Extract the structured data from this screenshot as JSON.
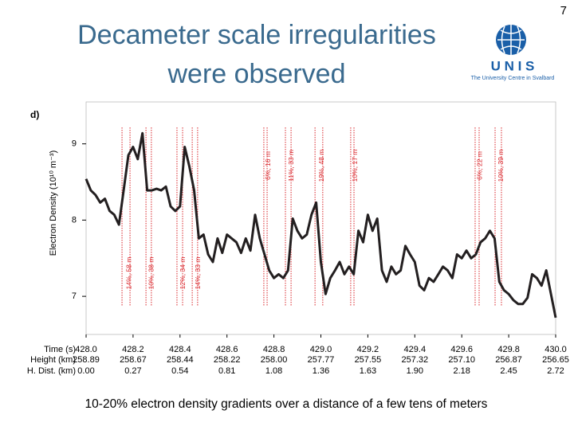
{
  "page_number": "7",
  "title_lines": [
    "Decameter scale irregularities",
    "were observed"
  ],
  "logo": {
    "name": "U N I S",
    "subtitle": "The University Centre in Svalbard"
  },
  "caption": "10-20% electron density gradients over a distance of a few tens of meters",
  "chart_data": {
    "type": "line",
    "panel_label": "d)",
    "ylabel": "Electron Density (10¹⁰ m⁻³)",
    "row_labels": [
      "Time (s)",
      "Height (km)",
      "H. Dist. (km)"
    ],
    "xlim": [
      428,
      430
    ],
    "xticks": [
      {
        "value": 428,
        "label": "428.0"
      },
      428.2,
      428.4,
      428.6,
      428.8,
      {
        "value": 429,
        "label": "429.0"
      },
      429.2,
      429.4,
      429.6,
      429.8,
      {
        "value": 430,
        "label": "430.0"
      }
    ],
    "height_labels": [
      "258.89",
      "258.67",
      "258.44",
      "258.22",
      "258.00",
      "257.77",
      "257.55",
      "257.32",
      "257.10",
      "256.87",
      "256.65"
    ],
    "hdist_labels": [
      "0.00",
      "0.27",
      "0.54",
      "0.81",
      "1.08",
      "1.36",
      "1.63",
      "1.90",
      "2.18",
      "2.45",
      "2.72"
    ],
    "ylim": [
      6.5,
      9.55
    ],
    "yticks": [
      7,
      8,
      9
    ],
    "color": "#231f20",
    "annotation_color": "#d9262b",
    "x": [
      428.0,
      428.02,
      428.04,
      428.06,
      428.08,
      428.1,
      428.12,
      428.14,
      428.16,
      428.18,
      428.2,
      428.22,
      428.24,
      428.26,
      428.28,
      428.3,
      428.32,
      428.34,
      428.36,
      428.38,
      428.4,
      428.42,
      428.44,
      428.46,
      428.48,
      428.5,
      428.52,
      428.54,
      428.56,
      428.58,
      428.6,
      428.62,
      428.64,
      428.66,
      428.68,
      428.7,
      428.72,
      428.74,
      428.76,
      428.78,
      428.8,
      428.82,
      428.84,
      428.86,
      428.88,
      428.9,
      428.92,
      428.94,
      428.96,
      428.98,
      429.0,
      429.02,
      429.04,
      429.06,
      429.08,
      429.1,
      429.12,
      429.14,
      429.16,
      429.18,
      429.2,
      429.22,
      429.24,
      429.26,
      429.28,
      429.3,
      429.32,
      429.34,
      429.36,
      429.38,
      429.4,
      429.42,
      429.44,
      429.46,
      429.48,
      429.5,
      429.52,
      429.54,
      429.56,
      429.58,
      429.6,
      429.62,
      429.64,
      429.66,
      429.68,
      429.7,
      429.72,
      429.74,
      429.76,
      429.78,
      429.8,
      429.82,
      429.84,
      429.86,
      429.88,
      429.9,
      429.92,
      429.94,
      429.96,
      429.98,
      430.0
    ],
    "values": [
      8.54,
      8.39,
      8.33,
      8.23,
      8.28,
      8.12,
      8.07,
      7.94,
      8.39,
      8.85,
      8.96,
      8.8,
      9.14,
      8.39,
      8.39,
      8.41,
      8.39,
      8.44,
      8.18,
      8.12,
      8.18,
      8.96,
      8.7,
      8.39,
      7.76,
      7.81,
      7.55,
      7.45,
      7.76,
      7.57,
      7.81,
      7.76,
      7.71,
      7.57,
      7.76,
      7.6,
      8.07,
      7.76,
      7.55,
      7.34,
      7.24,
      7.29,
      7.24,
      7.34,
      8.02,
      7.86,
      7.76,
      7.81,
      8.07,
      8.23,
      7.45,
      7.03,
      7.24,
      7.34,
      7.45,
      7.29,
      7.39,
      7.29,
      7.86,
      7.71,
      8.07,
      7.86,
      8.02,
      7.34,
      7.19,
      7.39,
      7.29,
      7.34,
      7.66,
      7.55,
      7.45,
      7.14,
      7.08,
      7.24,
      7.19,
      7.29,
      7.39,
      7.34,
      7.24,
      7.55,
      7.5,
      7.6,
      7.5,
      7.55,
      7.71,
      7.76,
      7.86,
      7.76,
      7.19,
      7.08,
      7.03,
      6.95,
      6.9,
      6.9,
      6.98,
      7.29,
      7.24,
      7.14,
      7.34,
      7.03,
      6.72
    ],
    "annotations": [
      {
        "label": "14%, 58 m",
        "x": [
          428.153,
          428.187
        ],
        "position": "bottom"
      },
      {
        "label": "10%, 38 m",
        "x": [
          428.255,
          428.278
        ],
        "position": "bottom"
      },
      {
        "label": "12%, 34 m",
        "x": [
          428.387,
          428.411
        ],
        "position": "bottom"
      },
      {
        "label": "14%, 33 m",
        "x": [
          428.452,
          428.475
        ],
        "position": "bottom"
      },
      {
        "label": "6%, 16 m",
        "x": [
          428.757,
          428.771
        ],
        "position": "top"
      },
      {
        "label": "11%, 33 m",
        "x": [
          428.849,
          428.873
        ],
        "position": "top"
      },
      {
        "label": "19%, 48 m",
        "x": [
          428.975,
          429.008
        ],
        "position": "top"
      },
      {
        "label": "10%, 17 m",
        "x": [
          429.127,
          429.141
        ],
        "position": "top"
      },
      {
        "label": "6%, 22 m",
        "x": [
          429.657,
          429.674
        ],
        "position": "top"
      },
      {
        "label": "10%, 39 m",
        "x": [
          429.742,
          429.769
        ],
        "position": "top"
      }
    ]
  }
}
